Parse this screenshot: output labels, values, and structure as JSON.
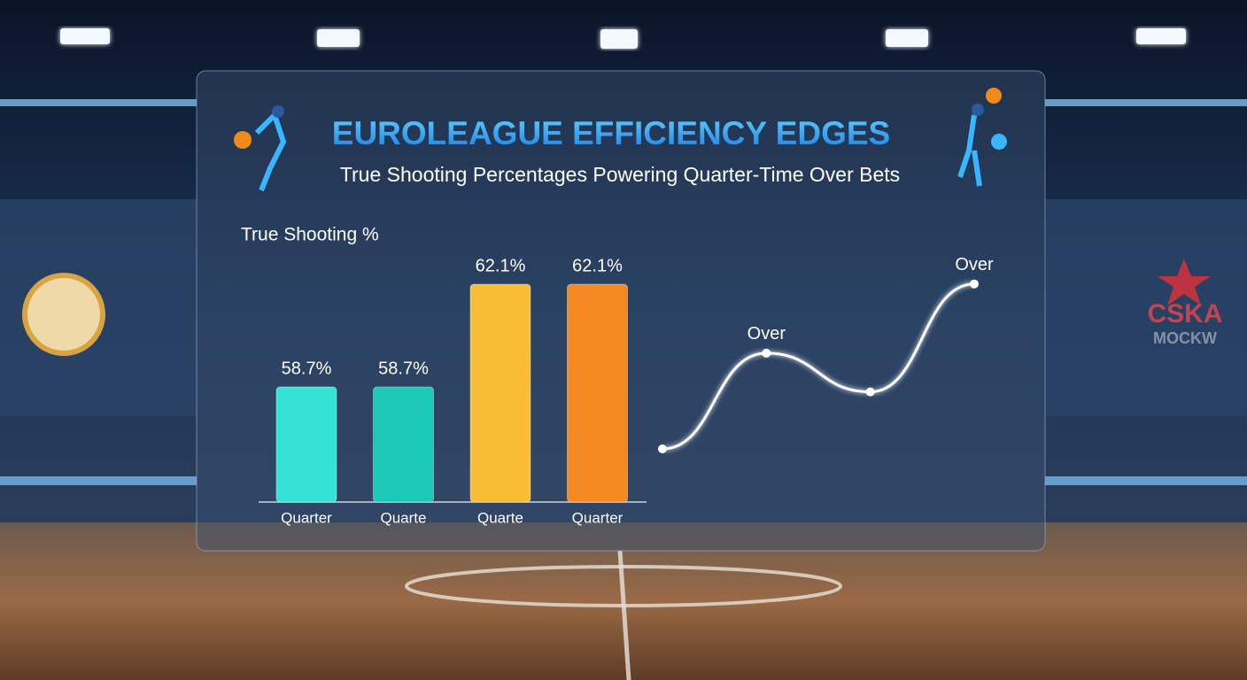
{
  "header": {
    "title": "EUROLEAGUE EFFICIENCY EDGES",
    "subtitle": "True Shooting Percentages Powering Quarter-Time Over Bets"
  },
  "background": {
    "banner_text": [
      "CSKA",
      "MOCKW"
    ]
  },
  "chart_data": [
    {
      "type": "bar",
      "y_label": "True Shooting %",
      "categories": [
        "Quarter",
        "Quarte",
        "Quarte",
        "Quarter"
      ],
      "values": [
        58.7,
        58.7,
        62.1,
        62.1
      ],
      "value_labels": [
        "58.7%",
        "58.7%",
        "62.1%",
        "62.1%"
      ],
      "colors": [
        "#35e3d6",
        "#1cc8b8",
        "#f8bd35",
        "#f58a22"
      ]
    },
    {
      "type": "line",
      "ylim": [
        0,
        100
      ],
      "values": [
        10,
        57,
        38,
        91
      ],
      "point_labels": [
        null,
        "Over",
        null,
        "Over"
      ],
      "color": "#ffffff"
    }
  ]
}
